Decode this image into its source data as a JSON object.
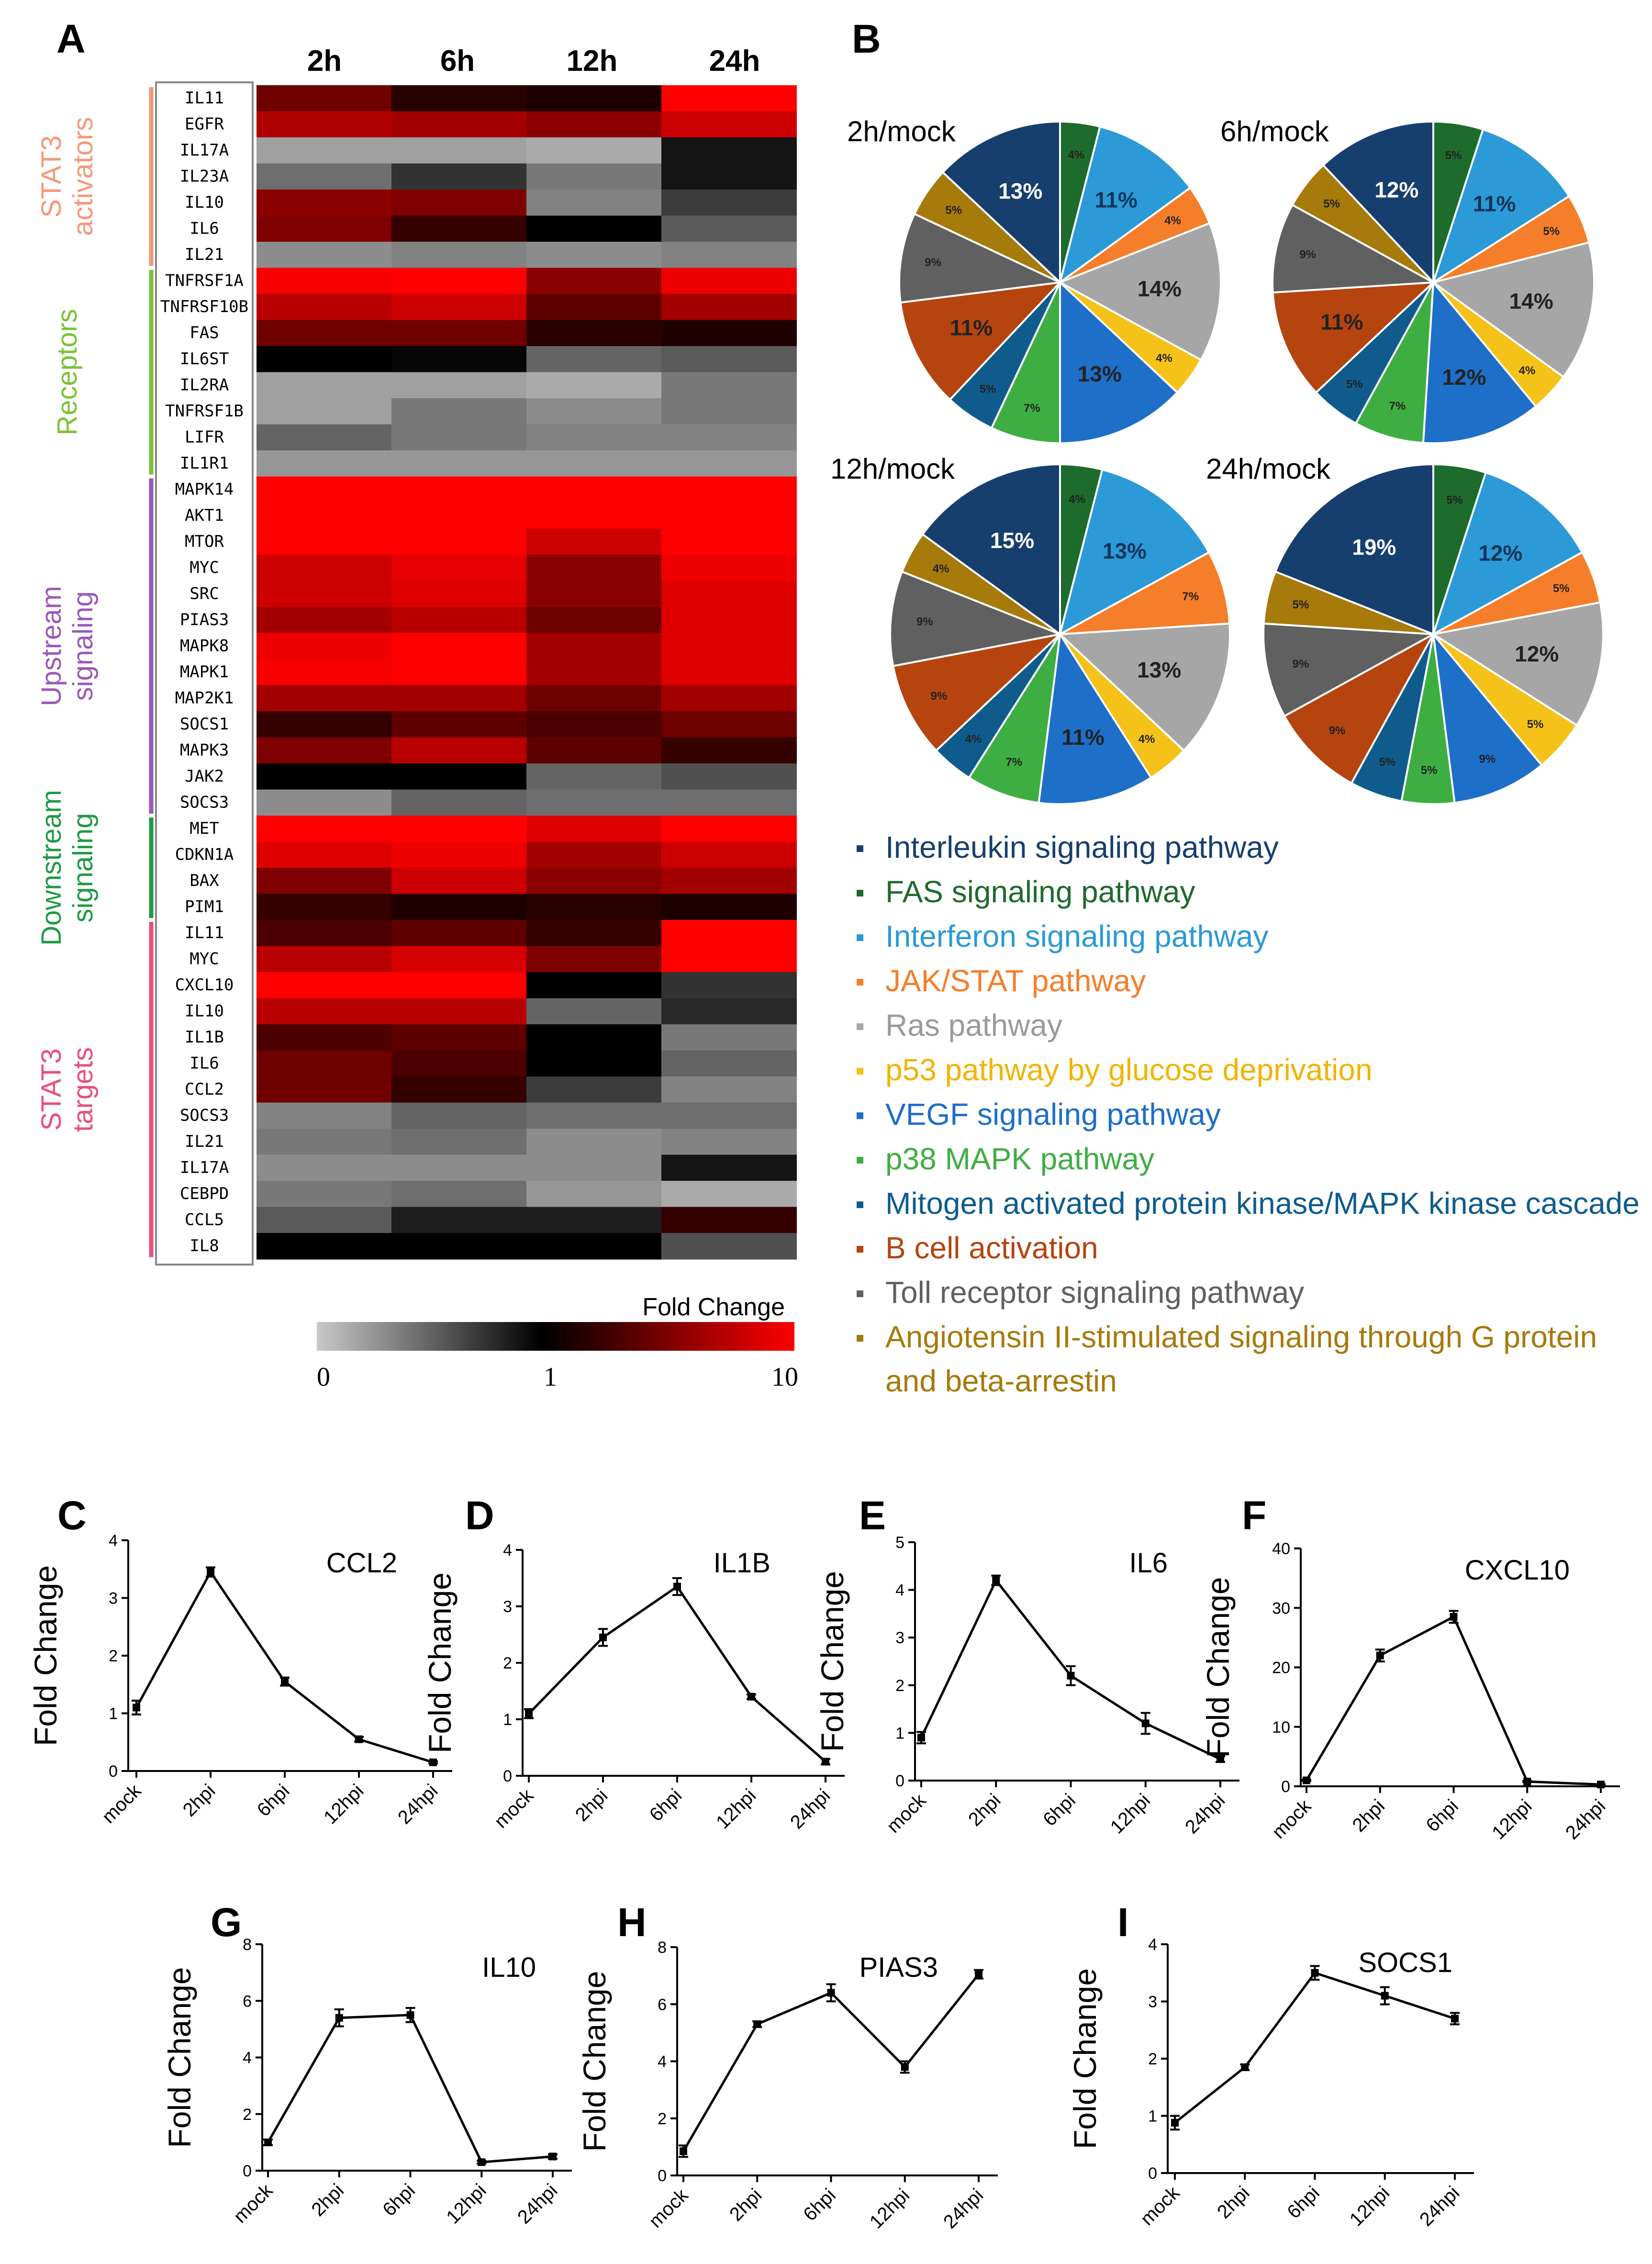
{
  "figure": {
    "panel_labels": [
      "A",
      "B",
      "C",
      "D",
      "E",
      "F",
      "G",
      "H",
      "I"
    ]
  },
  "heatmap": {
    "columns": [
      "2h",
      "6h",
      "12h",
      "24h"
    ],
    "groups": [
      {
        "label_lines": [
          "STAT3",
          "activators"
        ],
        "color": "#f4997a",
        "count": 7
      },
      {
        "label_lines": [
          "Receptors"
        ],
        "color": "#7cc13a",
        "count": 8
      },
      {
        "label_lines": [
          "Upstream",
          "signaling"
        ],
        "color": "#9b59b6",
        "count": 13
      },
      {
        "label_lines": [
          "Downstream",
          "signaling"
        ],
        "color": "#1f9a45",
        "count": 4
      },
      {
        "label_lines": [
          "STAT3",
          "targets"
        ],
        "color": "#e8507a",
        "count": 13
      }
    ],
    "genes": [
      "IL11",
      "EGFR",
      "IL17A",
      "IL23A",
      "IL10",
      "IL6",
      "IL21",
      "TNFRSF1A",
      "TNFRSF10B",
      "FAS",
      "IL6ST",
      "IL2RA",
      "TNFRSF1B",
      "LIFR",
      "IL1R1",
      "MAPK14",
      "AKT1",
      "MTOR",
      "MYC",
      "SRC",
      "PIAS3",
      "MAPK8",
      "MAPK1",
      "MAP2K1",
      "SOCS1",
      "MAPK3",
      "JAK2",
      "SOCS3",
      "MET",
      "CDKN1A",
      "BAX",
      "PIM1",
      "IL11",
      "MYC",
      "CXCL10",
      "IL10",
      "IL1B",
      "IL6",
      "CCL2",
      "SOCS3",
      "IL21",
      "IL17A",
      "CEBPD",
      "CCL5",
      "IL8"
    ],
    "values": [
      [
        3,
        1.3,
        1.2,
        10
      ],
      [
        5.5,
        5,
        4,
        7
      ],
      [
        0.2,
        0.2,
        0.15,
        0.9
      ],
      [
        0.45,
        0.75,
        0.4,
        0.9
      ],
      [
        4,
        3.5,
        0.35,
        0.7
      ],
      [
        3.5,
        1.5,
        1.0,
        0.55
      ],
      [
        0.3,
        0.35,
        0.3,
        0.35
      ],
      [
        9.5,
        10,
        4,
        9
      ],
      [
        6,
        7,
        2.5,
        5
      ],
      [
        3,
        3,
        1.3,
        1.2
      ],
      [
        1.0,
        0.97,
        0.5,
        0.55
      ],
      [
        0.2,
        0.2,
        0.15,
        0.4
      ],
      [
        0.2,
        0.4,
        0.3,
        0.4
      ],
      [
        0.5,
        0.4,
        0.35,
        0.35
      ],
      [
        0.25,
        0.25,
        0.25,
        0.25
      ],
      [
        10,
        10,
        10,
        10
      ],
      [
        10,
        10,
        10,
        10
      ],
      [
        10,
        10,
        7,
        10
      ],
      [
        7,
        8.5,
        4,
        9
      ],
      [
        7,
        8,
        4,
        8
      ],
      [
        5,
        6,
        3,
        8
      ],
      [
        9,
        10,
        5,
        8
      ],
      [
        9.5,
        10,
        5,
        8
      ],
      [
        5,
        5,
        3,
        5
      ],
      [
        1.5,
        2.5,
        2,
        3
      ],
      [
        3.5,
        6,
        2.5,
        1.5
      ],
      [
        1.0,
        1.0,
        0.5,
        0.6
      ],
      [
        0.3,
        0.5,
        0.45,
        0.45
      ],
      [
        10,
        10,
        8,
        10
      ],
      [
        8,
        9,
        5,
        7
      ],
      [
        3.5,
        7,
        4,
        5
      ],
      [
        1.5,
        1.2,
        1.3,
        1.2
      ],
      [
        2,
        2.5,
        1.5,
        10
      ],
      [
        6,
        7.5,
        3.5,
        10
      ],
      [
        10,
        10,
        1.0,
        0.75
      ],
      [
        6,
        6,
        0.5,
        0.8
      ],
      [
        2,
        2.5,
        1.0,
        0.4
      ],
      [
        3,
        2,
        1.0,
        0.5
      ],
      [
        3,
        1.5,
        0.7,
        0.35
      ],
      [
        0.35,
        0.5,
        0.45,
        0.45
      ],
      [
        0.4,
        0.45,
        0.3,
        0.35
      ],
      [
        0.3,
        0.3,
        0.3,
        0.9
      ],
      [
        0.4,
        0.45,
        0.25,
        0.15
      ],
      [
        0.55,
        0.85,
        0.85,
        1.5
      ],
      [
        1.0,
        1.0,
        1.0,
        0.6
      ]
    ],
    "scale": {
      "title": "Fold Change",
      "ticks": [
        "0",
        "1",
        "10"
      ]
    }
  },
  "pies": {
    "titles": [
      "2h/mock",
      "6h/mock",
      "12h/mock",
      "24h/mock"
    ],
    "order_colors": [
      "#163f6e",
      "#1d6b2d",
      "#2b9ad6",
      "#f57e2a",
      "#a6a6a6",
      "#f5c21a",
      "#1d6fc7",
      "#3fae42",
      "#0f5c8c",
      "#b5440f",
      "#606060",
      "#a67a0b"
    ],
    "percent_labels": [
      [
        "13%",
        "4%",
        "11%",
        "4%",
        "14%",
        "4%",
        "13%",
        "7%",
        "5%",
        "11%",
        "9%",
        "5%"
      ],
      [
        "12%",
        "5%",
        "11%",
        "5%",
        "14%",
        "4%",
        "12%",
        "7%",
        "5%",
        "11%",
        "9%",
        "5%"
      ],
      [
        "15%",
        "4%",
        "13%",
        "7%",
        "13%",
        "4%",
        "11%",
        "7%",
        "4%",
        "9%",
        "9%",
        "4%"
      ],
      [
        "19%",
        "5%",
        "12%",
        "5%",
        "12%",
        "5%",
        "9%",
        "5%",
        "5%",
        "9%",
        "9%",
        "5%"
      ]
    ],
    "values": [
      [
        13,
        4,
        11,
        4,
        14,
        4,
        13,
        7,
        5,
        11,
        9,
        5
      ],
      [
        12,
        5,
        11,
        5,
        14,
        4,
        12,
        7,
        5,
        11,
        9,
        5
      ],
      [
        15,
        4,
        13,
        7,
        13,
        4,
        11,
        7,
        4,
        9,
        9,
        4
      ],
      [
        19,
        5,
        12,
        5,
        12,
        5,
        9,
        5,
        5,
        9,
        9,
        5
      ]
    ],
    "legend": [
      {
        "label": "Interleukin signaling pathway",
        "color": "#163f6e",
        "text_color": "#163f6e"
      },
      {
        "label": "FAS signaling pathway",
        "color": "#1d6b2d",
        "text_color": "#1d6b2d"
      },
      {
        "label": "Interferon signaling pathway",
        "color": "#2b9ad6",
        "text_color": "#2b9ad6"
      },
      {
        "label": "JAK/STAT pathway",
        "color": "#f57e2a",
        "text_color": "#f57e2a"
      },
      {
        "label": "Ras pathway",
        "color": "#a6a6a6",
        "text_color": "#9a9a9a"
      },
      {
        "label": "p53 pathway by glucose deprivation",
        "color": "#f5c21a",
        "text_color": "#f0b400"
      },
      {
        "label": "VEGF signaling pathway",
        "color": "#1d6fc7",
        "text_color": "#1d6fc7"
      },
      {
        "label": "p38 MAPK pathway",
        "color": "#3fae42",
        "text_color": "#3fae42"
      },
      {
        "label": "Mitogen activated protein kinase/MAPK kinase cascade",
        "color": "#0f5c8c",
        "text_color": "#0f5c8c"
      },
      {
        "label": "B cell activation",
        "color": "#b5440f",
        "text_color": "#b5440f"
      },
      {
        "label": "Toll receptor signaling pathway",
        "color": "#606060",
        "text_color": "#606060"
      },
      {
        "label": "Angiotensin II-stimulated signaling through G protein",
        "label2": "and beta-arrestin",
        "color": "#a67a0b",
        "text_color": "#a67a0b"
      }
    ]
  },
  "chart_data": [
    {
      "type": "line",
      "panel": "C",
      "title": "CCL2",
      "ylabel": "Fold Change",
      "categories": [
        "mock",
        "2hpi",
        "6hpi",
        "12hpi",
        "24hpi"
      ],
      "values": [
        1.1,
        3.45,
        1.55,
        0.55,
        0.15
      ],
      "errors": [
        0.12,
        0.08,
        0.07,
        0.04,
        0.02
      ],
      "ylim": [
        0,
        4
      ],
      "yticks": [
        "0",
        "1",
        "2",
        "3",
        "4"
      ]
    },
    {
      "type": "line",
      "panel": "D",
      "title": "IL1B",
      "ylabel": "Fold Change",
      "categories": [
        "mock",
        "2hpi",
        "6hpi",
        "12hpi",
        "24hpi"
      ],
      "values": [
        1.1,
        2.45,
        3.35,
        1.4,
        0.25
      ],
      "errors": [
        0.08,
        0.15,
        0.15,
        0.04,
        0.05
      ],
      "ylim": [
        0,
        4
      ],
      "yticks": [
        "0",
        "1",
        "2",
        "3",
        "4"
      ]
    },
    {
      "type": "line",
      "panel": "E",
      "title": "IL6",
      "ylabel": "Fold Change",
      "categories": [
        "mock",
        "2hpi",
        "6hpi",
        "12hpi",
        "24hpi"
      ],
      "values": [
        0.9,
        4.2,
        2.2,
        1.2,
        0.45
      ],
      "errors": [
        0.12,
        0.1,
        0.2,
        0.22,
        0.06
      ],
      "ylim": [
        0,
        5
      ],
      "yticks": [
        "0",
        "1",
        "2",
        "3",
        "4",
        "5"
      ]
    },
    {
      "type": "line",
      "panel": "F",
      "title": "CXCL10",
      "ylabel": "Fold Change",
      "categories": [
        "mock",
        "2hpi",
        "6hpi",
        "12hpi",
        "24hpi"
      ],
      "values": [
        1.0,
        22.0,
        28.5,
        0.8,
        0.3
      ],
      "errors": [
        0.1,
        1.0,
        1.0,
        0.1,
        0.05
      ],
      "ylim": [
        0,
        40
      ],
      "yticks": [
        "0",
        "10",
        "20",
        "30",
        "40"
      ]
    },
    {
      "type": "line",
      "panel": "G",
      "title": "IL10",
      "ylabel": "Fold Change",
      "categories": [
        "mock",
        "2hpi",
        "6hpi",
        "12hpi",
        "24hpi"
      ],
      "values": [
        1.0,
        5.4,
        5.5,
        0.3,
        0.5
      ],
      "errors": [
        0.1,
        0.3,
        0.25,
        0.05,
        0.08
      ],
      "ylim": [
        0,
        8
      ],
      "yticks": [
        "0",
        "2",
        "4",
        "6",
        "8"
      ]
    },
    {
      "type": "line",
      "panel": "H",
      "title": "PIAS3",
      "ylabel": "Fold Change",
      "categories": [
        "mock",
        "2hpi",
        "6hpi",
        "12hpi",
        "24hpi"
      ],
      "values": [
        0.85,
        5.3,
        6.4,
        3.8,
        7.05
      ],
      "errors": [
        0.2,
        0.1,
        0.3,
        0.2,
        0.15
      ],
      "ylim": [
        0,
        8
      ],
      "yticks": [
        "0",
        "2",
        "4",
        "6",
        "8"
      ]
    },
    {
      "type": "line",
      "panel": "I",
      "title": "SOCS1",
      "ylabel": "Fold Change",
      "categories": [
        "mock",
        "2hpi",
        "6hpi",
        "12hpi",
        "24hpi"
      ],
      "values": [
        0.88,
        1.85,
        3.5,
        3.1,
        2.7
      ],
      "errors": [
        0.12,
        0.05,
        0.12,
        0.15,
        0.1
      ],
      "ylim": [
        0,
        4
      ],
      "yticks": [
        "0",
        "1",
        "2",
        "3",
        "4"
      ]
    }
  ]
}
